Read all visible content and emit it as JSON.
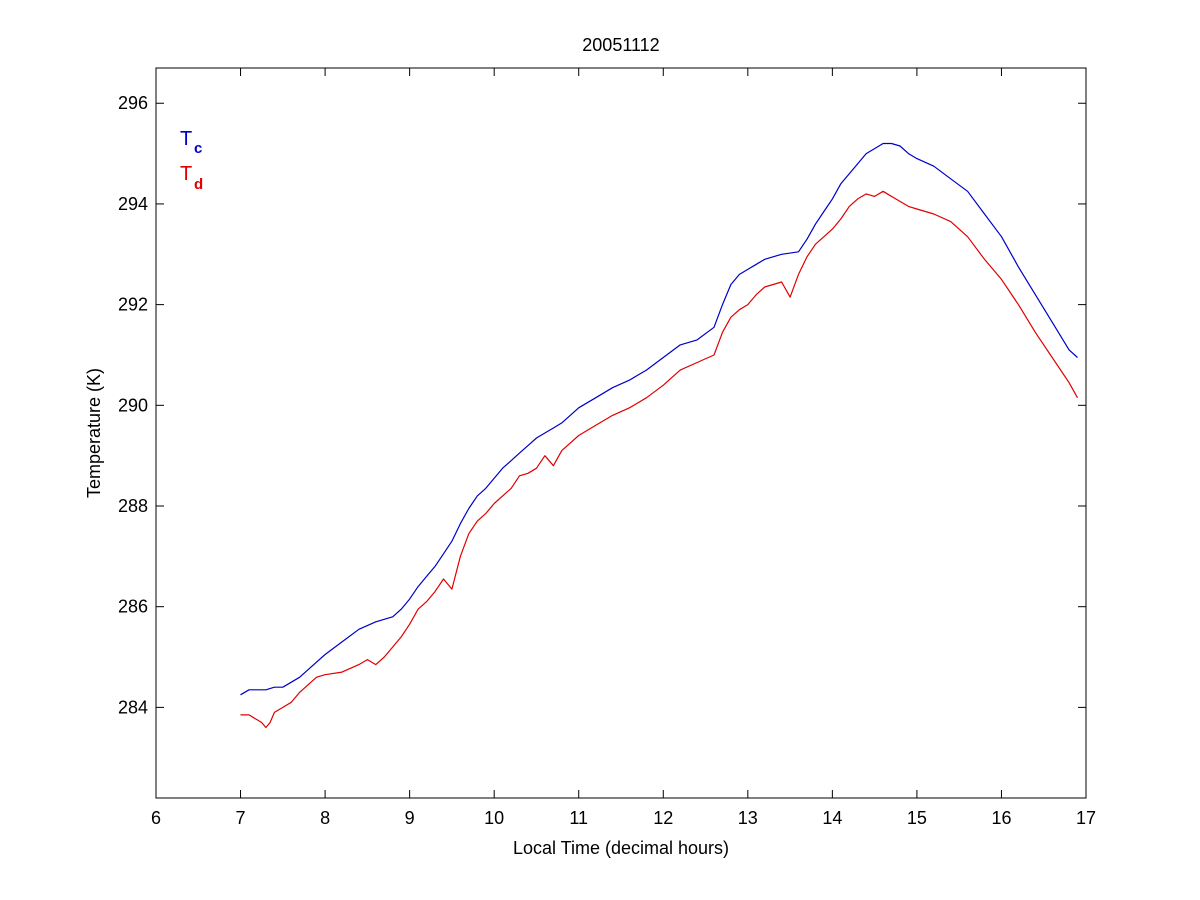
{
  "chart_data": {
    "type": "line",
    "title": "20051112",
    "xlabel": "Local Time (decimal hours)",
    "ylabel": "Temperature (K)",
    "xlim": [
      6,
      17
    ],
    "ylim": [
      282.2,
      296.7
    ],
    "xticks": [
      6,
      7,
      8,
      9,
      10,
      11,
      12,
      13,
      14,
      15,
      16,
      17
    ],
    "yticks": [
      284,
      286,
      288,
      290,
      292,
      294,
      296
    ],
    "grid": false,
    "legend": {
      "placement": "top-left",
      "entries": [
        {
          "main": "T",
          "sub": "c",
          "color": "#0000c8"
        },
        {
          "main": "T",
          "sub": "d",
          "color": "#e00000"
        }
      ]
    },
    "series": [
      {
        "color": "#0000c8",
        "x": [
          7.0,
          7.1,
          7.2,
          7.3,
          7.4,
          7.5,
          7.6,
          7.7,
          7.8,
          7.9,
          8.0,
          8.2,
          8.4,
          8.6,
          8.8,
          8.9,
          9.0,
          9.1,
          9.2,
          9.3,
          9.4,
          9.5,
          9.6,
          9.7,
          9.8,
          9.9,
          10.0,
          10.1,
          10.2,
          10.3,
          10.4,
          10.5,
          10.6,
          10.7,
          10.8,
          11.0,
          11.2,
          11.4,
          11.6,
          11.8,
          12.0,
          12.2,
          12.4,
          12.6,
          12.7,
          12.8,
          12.9,
          13.0,
          13.1,
          13.2,
          13.4,
          13.6,
          13.7,
          13.8,
          13.9,
          14.0,
          14.1,
          14.2,
          14.3,
          14.4,
          14.5,
          14.6,
          14.7,
          14.8,
          14.9,
          15.0,
          15.2,
          15.4,
          15.6,
          15.8,
          16.0,
          16.2,
          16.4,
          16.6,
          16.8,
          16.9
        ],
        "y": [
          284.25,
          284.35,
          284.35,
          284.35,
          284.4,
          284.4,
          284.5,
          284.6,
          284.75,
          284.9,
          285.05,
          285.3,
          285.55,
          285.7,
          285.8,
          285.95,
          286.15,
          286.4,
          286.6,
          286.8,
          287.05,
          287.3,
          287.65,
          287.95,
          288.2,
          288.35,
          288.55,
          288.75,
          288.9,
          289.05,
          289.2,
          289.35,
          289.45,
          289.55,
          289.65,
          289.95,
          290.15,
          290.35,
          290.5,
          290.7,
          290.95,
          291.2,
          291.3,
          291.55,
          292.0,
          292.4,
          292.6,
          292.7,
          292.8,
          292.9,
          293.0,
          293.05,
          293.3,
          293.6,
          293.85,
          294.1,
          294.4,
          294.6,
          294.8,
          295.0,
          295.1,
          295.2,
          295.2,
          295.15,
          295.0,
          294.9,
          294.75,
          294.5,
          294.25,
          293.8,
          293.35,
          292.75,
          292.2,
          291.65,
          291.1,
          290.95
        ]
      },
      {
        "color": "#e00000",
        "x": [
          7.0,
          7.1,
          7.2,
          7.25,
          7.3,
          7.35,
          7.4,
          7.5,
          7.6,
          7.7,
          7.8,
          7.9,
          8.0,
          8.2,
          8.4,
          8.5,
          8.6,
          8.7,
          8.8,
          8.9,
          9.0,
          9.1,
          9.2,
          9.3,
          9.4,
          9.5,
          9.6,
          9.7,
          9.8,
          9.9,
          10.0,
          10.1,
          10.2,
          10.3,
          10.4,
          10.5,
          10.6,
          10.7,
          10.8,
          11.0,
          11.2,
          11.4,
          11.6,
          11.8,
          12.0,
          12.2,
          12.4,
          12.6,
          12.7,
          12.8,
          12.9,
          13.0,
          13.1,
          13.2,
          13.4,
          13.5,
          13.6,
          13.7,
          13.8,
          13.9,
          14.0,
          14.1,
          14.2,
          14.3,
          14.4,
          14.5,
          14.6,
          14.7,
          14.8,
          14.9,
          15.0,
          15.2,
          15.4,
          15.6,
          15.8,
          16.0,
          16.2,
          16.4,
          16.6,
          16.8,
          16.9
        ],
        "y": [
          283.85,
          283.85,
          283.75,
          283.7,
          283.6,
          283.7,
          283.9,
          284.0,
          284.1,
          284.3,
          284.45,
          284.6,
          284.65,
          284.7,
          284.85,
          284.95,
          284.85,
          285.0,
          285.2,
          285.4,
          285.65,
          285.95,
          286.1,
          286.3,
          286.55,
          286.35,
          287.0,
          287.45,
          287.7,
          287.85,
          288.05,
          288.2,
          288.35,
          288.6,
          288.65,
          288.75,
          289.0,
          288.8,
          289.1,
          289.4,
          289.6,
          289.8,
          289.95,
          290.15,
          290.4,
          290.7,
          290.85,
          291.0,
          291.45,
          291.75,
          291.9,
          292.0,
          292.2,
          292.35,
          292.45,
          292.15,
          292.6,
          292.95,
          293.2,
          293.35,
          293.5,
          293.7,
          293.95,
          294.1,
          294.2,
          294.15,
          294.25,
          294.15,
          294.05,
          293.95,
          293.9,
          293.8,
          293.65,
          293.35,
          292.9,
          292.5,
          292.0,
          291.45,
          290.95,
          290.45,
          290.15
        ]
      }
    ]
  }
}
